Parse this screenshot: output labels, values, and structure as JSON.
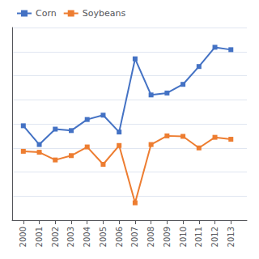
{
  "chart_data": {
    "type": "line",
    "x": [
      2000,
      2001,
      2002,
      2003,
      2004,
      2005,
      2006,
      2007,
      2008,
      2009,
      2010,
      2011,
      2012,
      2013
    ],
    "series": [
      {
        "name": "Corn",
        "color": "#4472C4",
        "marker": "square",
        "values": [
          79.6,
          75.7,
          78.9,
          78.6,
          80.9,
          81.8,
          78.3,
          93.5,
          86.0,
          86.4,
          88.2,
          91.9,
          95.9,
          95.4
        ]
      },
      {
        "name": "Soybeans",
        "color": "#ED7D31",
        "marker": "square",
        "values": [
          74.3,
          74.1,
          72.5,
          73.4,
          75.2,
          71.6,
          75.5,
          63.6,
          75.7,
          77.5,
          77.4,
          75.0,
          77.2,
          76.8
        ]
      }
    ],
    "xlim": [
      1999.3,
      2014.0
    ],
    "xticks": [
      2000,
      2001,
      2002,
      2003,
      2004,
      2005,
      2006,
      2007,
      2008,
      2009,
      2010,
      2011,
      2012,
      2013
    ],
    "ylim": [
      60,
      100
    ],
    "yticks": [
      65,
      70,
      75,
      80,
      85,
      90,
      95,
      100
    ],
    "tick_labels": "x",
    "grid": true,
    "legend": "upper left"
  }
}
